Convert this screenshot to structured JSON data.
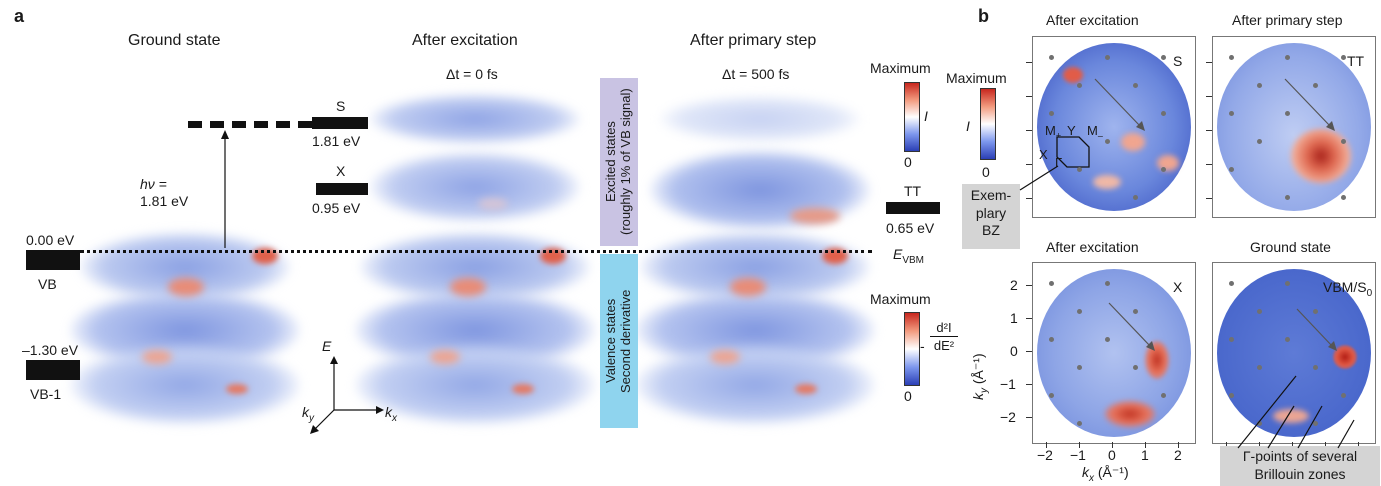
{
  "panel_a": {
    "letter": "a",
    "titles": {
      "ground_state": "Ground state",
      "after_excitation": "After excitation",
      "after_primary_step": "After primary step"
    },
    "times": {
      "after_excitation": "Δt = 0 fs",
      "after_primary_step": "Δt = 500 fs"
    },
    "levels": {
      "s_label": "S",
      "s_energy": "1.81 eV",
      "x_label": "X",
      "x_energy": "0.95 eV",
      "tt_label": "TT",
      "tt_energy": "0.65 eV",
      "vb_energy": "0.00 eV",
      "vb_label": "VB",
      "vb1_energy": "–1.30 eV",
      "vb1_label": "VB-1"
    },
    "photon": {
      "line1": "hν =",
      "line2": "1.81 eV"
    },
    "evbm": "E",
    "evbm_sub": "VBM",
    "excited_box": {
      "line1": "Excited states",
      "line2": "(roughly 1% of VB signal)",
      "color": "#c9c3e3"
    },
    "valence_box": {
      "line1": "Valence states",
      "line2": "Second derivative",
      "color": "#8fd4ee"
    },
    "colorbar_top": {
      "max": "Maximum",
      "label": "I",
      "min": "0"
    },
    "colorbar_bottom": {
      "max": "Maximum",
      "minus": "-",
      "num": "d²I",
      "den": "dE²",
      "min": "0"
    },
    "axes": {
      "e": "E",
      "ky": "k",
      "ky_sub": "y",
      "kx": "k",
      "kx_sub": "x"
    }
  },
  "panel_b": {
    "letter": "b",
    "titles": {
      "tl": "After excitation",
      "tr": "After primary step",
      "bl": "After excitation",
      "br": "Ground state"
    },
    "corner_labels": {
      "tl": "S",
      "tr": "TT",
      "bl": "X",
      "br_main": "VBM/S",
      "br_sub": "0"
    },
    "colorbar": {
      "max": "Maximum",
      "label": "I",
      "min": "0"
    },
    "bz_labels": {
      "m_plus": "M",
      "m_plus_sub": "+",
      "y": "Y",
      "m_minus": "M",
      "m_minus_sub": "–",
      "x": "X",
      "gamma": "Γ"
    },
    "exemplary_callout": {
      "l1": "Exem-",
      "l2": "plary",
      "l3": "BZ"
    },
    "gamma_callout": {
      "l1": "Γ-points of several",
      "l2": "Brillouin zones"
    },
    "ky_label": "k",
    "ky_sub": "y",
    "ky_unit": " (Å⁻¹)",
    "kx_label": "k",
    "kx_sub": "x",
    "kx_unit": " (Å⁻¹)",
    "yticks": [
      "2",
      "1",
      "0",
      "−1",
      "−2"
    ],
    "xticks": [
      "−2",
      "−1",
      "0",
      "1",
      "2"
    ]
  }
}
